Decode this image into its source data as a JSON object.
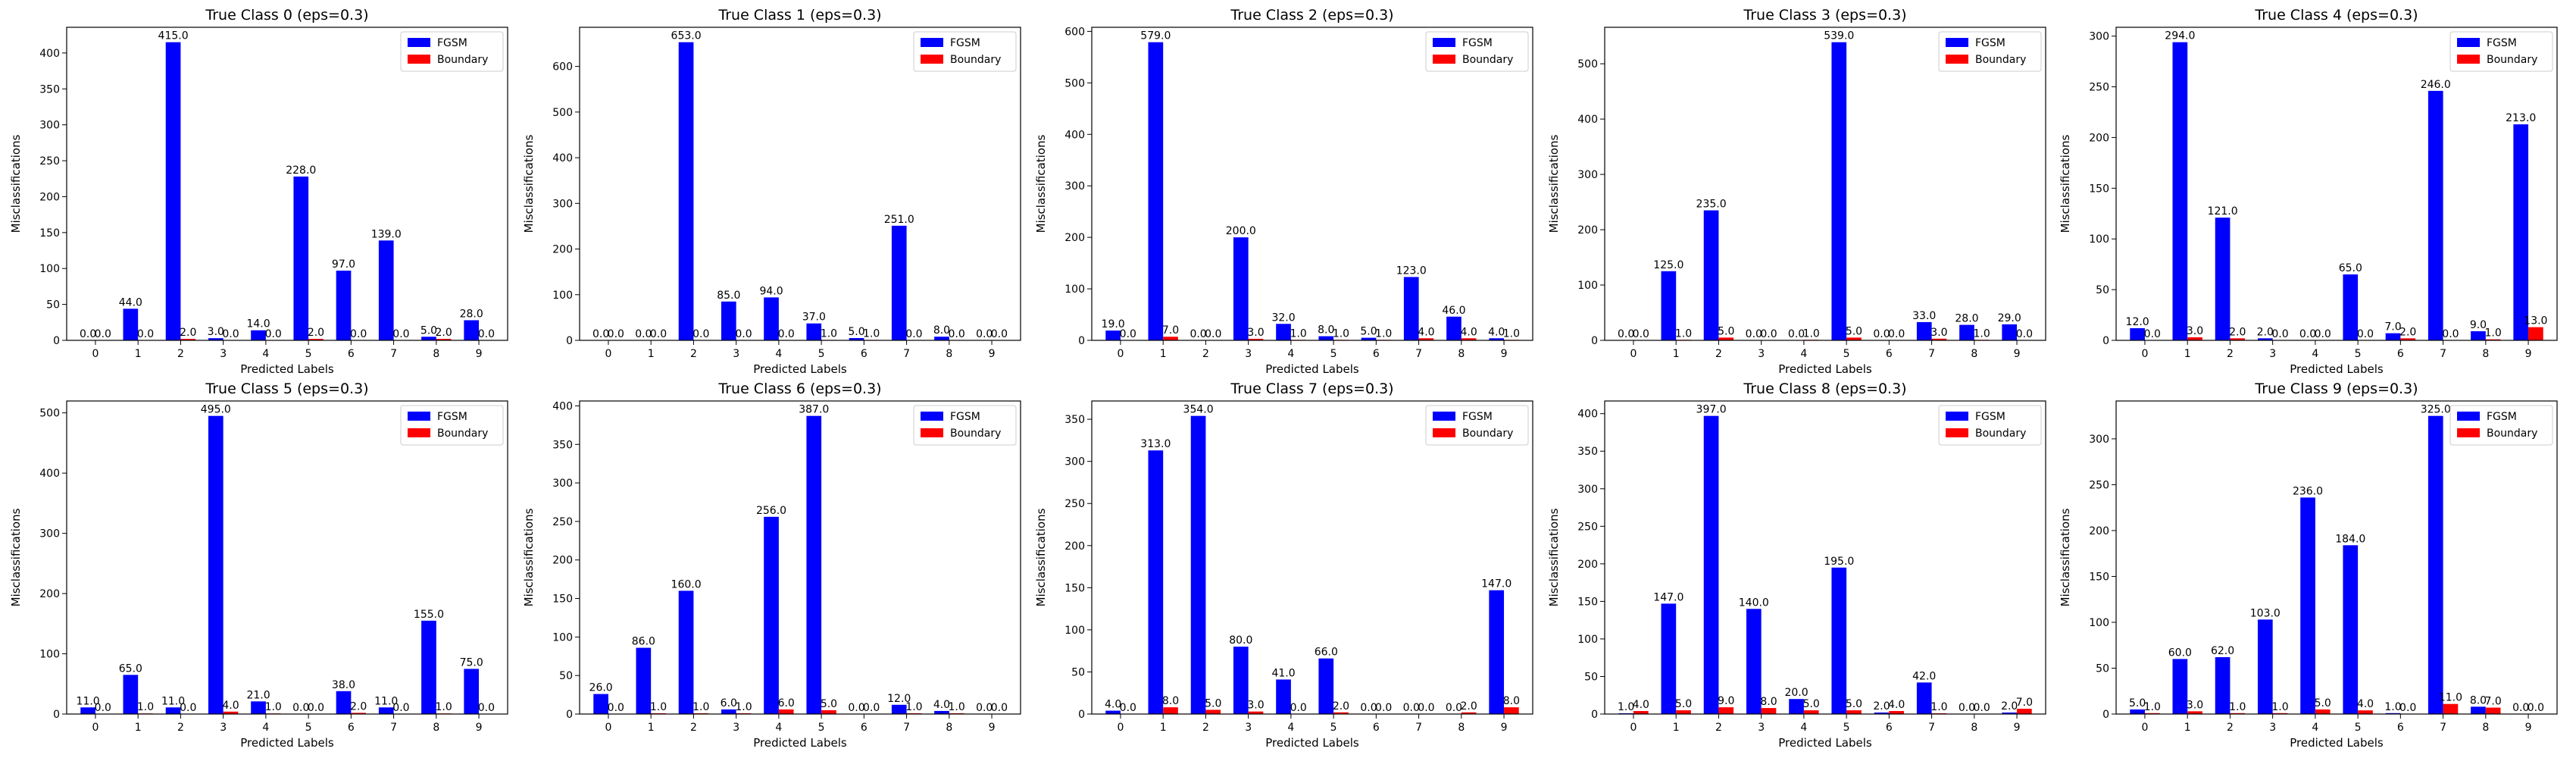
{
  "colors": {
    "fgsm": "#0000ff",
    "boundary": "#ff0000"
  },
  "figure": {
    "rows": 2,
    "cols": 5
  },
  "chart_data": [
    {
      "type": "bar",
      "title": "True Class 0 (eps=0.3)",
      "xlabel": "Predicted Labels",
      "ylabel": "Misclassifications",
      "categories": [
        "0",
        "1",
        "2",
        "3",
        "4",
        "5",
        "6",
        "7",
        "8",
        "9"
      ],
      "ylim": [
        0,
        435.75
      ],
      "yticks": [
        0,
        50,
        100,
        150,
        200,
        250,
        300,
        350,
        400
      ],
      "legend": "upper right",
      "series": [
        {
          "name": "FGSM",
          "values": [
            0,
            44,
            415,
            3,
            14,
            228,
            97,
            139,
            5,
            28
          ]
        },
        {
          "name": "Boundary",
          "values": [
            0,
            0,
            2,
            0,
            0,
            2,
            0,
            0,
            2,
            0
          ]
        }
      ]
    },
    {
      "type": "bar",
      "title": "True Class 1 (eps=0.3)",
      "xlabel": "Predicted Labels",
      "ylabel": "Misclassifications",
      "categories": [
        "0",
        "1",
        "2",
        "3",
        "4",
        "5",
        "6",
        "7",
        "8",
        "9"
      ],
      "ylim": [
        0,
        685.65
      ],
      "yticks": [
        0,
        100,
        200,
        300,
        400,
        500,
        600
      ],
      "legend": "upper right",
      "series": [
        {
          "name": "FGSM",
          "values": [
            0,
            0,
            653,
            85,
            94,
            37,
            5,
            251,
            8,
            0
          ]
        },
        {
          "name": "Boundary",
          "values": [
            0,
            0,
            0,
            0,
            0,
            1,
            1,
            0,
            0,
            0
          ]
        }
      ]
    },
    {
      "type": "bar",
      "title": "True Class 2 (eps=0.3)",
      "xlabel": "Predicted Labels",
      "ylabel": "Misclassifications",
      "categories": [
        "0",
        "1",
        "2",
        "3",
        "4",
        "5",
        "6",
        "7",
        "8",
        "9"
      ],
      "ylim": [
        0,
        607.95
      ],
      "yticks": [
        0,
        100,
        200,
        300,
        400,
        500,
        600
      ],
      "legend": "upper right",
      "series": [
        {
          "name": "FGSM",
          "values": [
            19,
            579,
            0,
            200,
            32,
            8,
            5,
            123,
            46,
            4
          ]
        },
        {
          "name": "Boundary",
          "values": [
            0,
            7,
            0,
            3,
            1,
            1,
            1,
            4,
            4,
            1
          ]
        }
      ]
    },
    {
      "type": "bar",
      "title": "True Class 3 (eps=0.3)",
      "xlabel": "Predicted Labels",
      "ylabel": "Misclassifications",
      "categories": [
        "0",
        "1",
        "2",
        "3",
        "4",
        "5",
        "6",
        "7",
        "8",
        "9"
      ],
      "ylim": [
        0,
        565.95
      ],
      "yticks": [
        0,
        100,
        200,
        300,
        400,
        500
      ],
      "legend": "upper right",
      "series": [
        {
          "name": "FGSM",
          "values": [
            0,
            125,
            235,
            0,
            0,
            539,
            0,
            33,
            28,
            29
          ]
        },
        {
          "name": "Boundary",
          "values": [
            0,
            1,
            5,
            0,
            1,
            5,
            0,
            3,
            1,
            0
          ]
        }
      ]
    },
    {
      "type": "bar",
      "title": "True Class 4 (eps=0.3)",
      "xlabel": "Predicted Labels",
      "ylabel": "Misclassifications",
      "categories": [
        "0",
        "1",
        "2",
        "3",
        "4",
        "5",
        "6",
        "7",
        "8",
        "9"
      ],
      "ylim": [
        0,
        308.7
      ],
      "yticks": [
        0,
        50,
        100,
        150,
        200,
        250,
        300
      ],
      "legend": "upper right",
      "series": [
        {
          "name": "FGSM",
          "values": [
            12,
            294,
            121,
            2,
            0,
            65,
            7,
            246,
            9,
            213
          ]
        },
        {
          "name": "Boundary",
          "values": [
            0,
            3,
            2,
            0,
            0,
            0,
            2,
            0,
            1,
            13
          ]
        }
      ]
    },
    {
      "type": "bar",
      "title": "True Class 5 (eps=0.3)",
      "xlabel": "Predicted Labels",
      "ylabel": "Misclassifications",
      "categories": [
        "0",
        "1",
        "2",
        "3",
        "4",
        "5",
        "6",
        "7",
        "8",
        "9"
      ],
      "ylim": [
        0,
        519.75
      ],
      "yticks": [
        0,
        100,
        200,
        300,
        400,
        500
      ],
      "legend": "upper right",
      "series": [
        {
          "name": "FGSM",
          "values": [
            11,
            65,
            11,
            495,
            21,
            0,
            38,
            11,
            155,
            75
          ]
        },
        {
          "name": "Boundary",
          "values": [
            0,
            1,
            0,
            4,
            1,
            0,
            2,
            0,
            1,
            0
          ]
        }
      ]
    },
    {
      "type": "bar",
      "title": "True Class 6 (eps=0.3)",
      "xlabel": "Predicted Labels",
      "ylabel": "Misclassifications",
      "categories": [
        "0",
        "1",
        "2",
        "3",
        "4",
        "5",
        "6",
        "7",
        "8",
        "9"
      ],
      "ylim": [
        0,
        406.35
      ],
      "yticks": [
        0,
        50,
        100,
        150,
        200,
        250,
        300,
        350,
        400
      ],
      "legend": "upper right",
      "series": [
        {
          "name": "FGSM",
          "values": [
            26,
            86,
            160,
            6,
            256,
            387,
            0,
            12,
            4,
            0
          ]
        },
        {
          "name": "Boundary",
          "values": [
            0,
            1,
            1,
            1,
            6,
            5,
            0,
            1,
            1,
            0
          ]
        }
      ]
    },
    {
      "type": "bar",
      "title": "True Class 7 (eps=0.3)",
      "xlabel": "Predicted Labels",
      "ylabel": "Misclassifications",
      "categories": [
        "0",
        "1",
        "2",
        "3",
        "4",
        "5",
        "6",
        "7",
        "8",
        "9"
      ],
      "ylim": [
        0,
        371.7
      ],
      "yticks": [
        0,
        50,
        100,
        150,
        200,
        250,
        300,
        350
      ],
      "legend": "upper right",
      "series": [
        {
          "name": "FGSM",
          "values": [
            4,
            313,
            354,
            80,
            41,
            66,
            0,
            0,
            0,
            147
          ]
        },
        {
          "name": "Boundary",
          "values": [
            0,
            8,
            5,
            3,
            0,
            2,
            0,
            0,
            2,
            8
          ]
        }
      ]
    },
    {
      "type": "bar",
      "title": "True Class 8 (eps=0.3)",
      "xlabel": "Predicted Labels",
      "ylabel": "Misclassifications",
      "categories": [
        "0",
        "1",
        "2",
        "3",
        "4",
        "5",
        "6",
        "7",
        "8",
        "9"
      ],
      "ylim": [
        0,
        416.85
      ],
      "yticks": [
        0,
        50,
        100,
        150,
        200,
        250,
        300,
        350,
        400
      ],
      "legend": "upper right",
      "series": [
        {
          "name": "FGSM",
          "values": [
            1,
            147,
            397,
            140,
            20,
            195,
            2,
            42,
            0,
            2
          ]
        },
        {
          "name": "Boundary",
          "values": [
            4,
            5,
            9,
            8,
            5,
            5,
            4,
            1,
            0,
            7
          ]
        }
      ]
    },
    {
      "type": "bar",
      "title": "True Class 9 (eps=0.3)",
      "xlabel": "Predicted Labels",
      "ylabel": "Misclassifications",
      "categories": [
        "0",
        "1",
        "2",
        "3",
        "4",
        "5",
        "6",
        "7",
        "8",
        "9"
      ],
      "ylim": [
        0,
        341.25
      ],
      "yticks": [
        0,
        50,
        100,
        150,
        200,
        250,
        300
      ],
      "legend": "upper right",
      "series": [
        {
          "name": "FGSM",
          "values": [
            5,
            60,
            62,
            103,
            236,
            184,
            1,
            325,
            8,
            0
          ]
        },
        {
          "name": "Boundary",
          "values": [
            1,
            3,
            1,
            1,
            5,
            4,
            0,
            11,
            7,
            0
          ]
        }
      ]
    }
  ]
}
